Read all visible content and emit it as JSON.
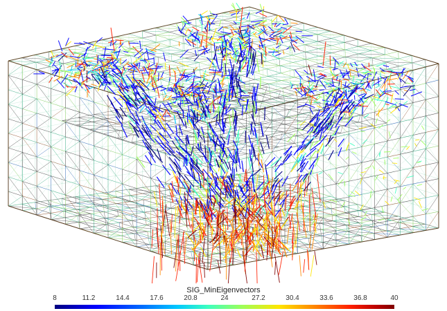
{
  "legend": {
    "title": "SIG_MinEigenvectors",
    "ticks": [
      "8",
      "11.2",
      "14.4",
      "17.6",
      "20.8",
      "24",
      "27.2",
      "30.4",
      "33.6",
      "36.8",
      "40"
    ],
    "range": [
      8,
      40
    ]
  },
  "colors": {
    "background": "#ffffff",
    "colormap": [
      "#00007f",
      "#0000ff",
      "#00c8ff",
      "#3cffc0",
      "#9cff5a",
      "#ffe600",
      "#ff8a00",
      "#ff2000",
      "#800000"
    ],
    "mesh_colors": [
      "#2a2a2a",
      "#1e8c6a",
      "#3fbf8a",
      "#7acf50",
      "#8a3a1a",
      "#0a3c8c"
    ]
  },
  "scene": {
    "description_type": "3d-fe-mesh-vector-plot",
    "structure": "box-with-four-column-supports"
  }
}
